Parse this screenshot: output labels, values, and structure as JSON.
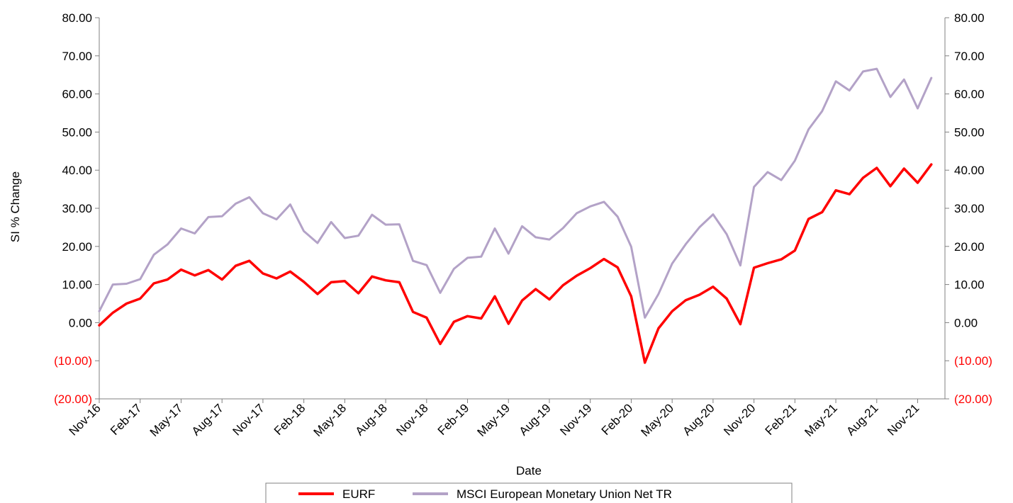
{
  "chart_data": {
    "type": "line",
    "xlabel": "Date",
    "ylabel": "SI % Change",
    "ylim": [
      -20,
      80
    ],
    "yticks": [
      -20,
      -10,
      0,
      10,
      20,
      30,
      40,
      50,
      60,
      70,
      80
    ],
    "ytick_labels": [
      "(20.00)",
      "(10.00)",
      "0.00",
      "10.00",
      "20.00",
      "30.00",
      "40.00",
      "50.00",
      "60.00",
      "70.00",
      "80.00"
    ],
    "negative_tick_color": "#ff0000",
    "secondary_axis_right": true,
    "x_tick_labels": [
      "Nov-16",
      "Feb-17",
      "May-17",
      "Aug-17",
      "Nov-17",
      "Feb-18",
      "May-18",
      "Aug-18",
      "Nov-18",
      "Feb-19",
      "May-19",
      "Aug-19",
      "Nov-19",
      "Feb-20",
      "May-20",
      "Aug-20",
      "Nov-20",
      "Feb-21",
      "May-21",
      "Aug-21",
      "Nov-21"
    ],
    "x": [
      "Nov-16",
      "Dec-16",
      "Jan-17",
      "Feb-17",
      "Mar-17",
      "Apr-17",
      "May-17",
      "Jun-17",
      "Jul-17",
      "Aug-17",
      "Sep-17",
      "Oct-17",
      "Nov-17",
      "Dec-17",
      "Jan-18",
      "Feb-18",
      "Mar-18",
      "Apr-18",
      "May-18",
      "Jun-18",
      "Jul-18",
      "Aug-18",
      "Sep-18",
      "Oct-18",
      "Nov-18",
      "Dec-18",
      "Jan-19",
      "Feb-19",
      "Mar-19",
      "Apr-19",
      "May-19",
      "Jun-19",
      "Jul-19",
      "Aug-19",
      "Sep-19",
      "Oct-19",
      "Nov-19",
      "Dec-19",
      "Jan-20",
      "Feb-20",
      "Mar-20",
      "Apr-20",
      "May-20",
      "Jun-20",
      "Jul-20",
      "Aug-20",
      "Sep-20",
      "Oct-20",
      "Nov-20",
      "Dec-20",
      "Jan-21",
      "Feb-21",
      "Mar-21",
      "Apr-21",
      "May-21",
      "Jun-21",
      "Jul-21",
      "Aug-21",
      "Sep-21",
      "Oct-21",
      "Nov-21",
      "Dec-21"
    ],
    "series": [
      {
        "name": "EURF",
        "color": "#ff0000",
        "values": [
          -0.7,
          2.6,
          5.0,
          6.3,
          10.3,
          11.3,
          13.9,
          12.4,
          13.8,
          11.3,
          14.9,
          16.2,
          12.9,
          11.6,
          13.4,
          10.7,
          7.5,
          10.6,
          10.9,
          7.7,
          12.1,
          11.1,
          10.6,
          2.8,
          1.3,
          -5.6,
          0.2,
          1.7,
          1.1,
          6.9,
          -0.3,
          5.8,
          8.8,
          6.1,
          9.8,
          12.3,
          14.3,
          16.7,
          14.5,
          6.9,
          -10.5,
          -1.5,
          3.0,
          5.9,
          7.3,
          9.4,
          6.3,
          -0.4,
          14.4,
          15.6,
          16.6,
          18.9,
          27.2,
          29.0,
          34.7,
          33.7,
          38.0,
          40.6,
          35.8,
          40.4,
          36.7,
          41.5
        ]
      },
      {
        "name": "MSCI European Monetary Union Net TR",
        "color": "#b3a2c7",
        "values": [
          3.0,
          10.0,
          10.2,
          11.4,
          17.8,
          20.5,
          24.7,
          23.4,
          27.7,
          27.9,
          31.2,
          32.9,
          28.7,
          27.1,
          31.0,
          24.0,
          20.9,
          26.4,
          22.2,
          22.8,
          28.3,
          25.7,
          25.8,
          16.2,
          15.1,
          7.8,
          14.1,
          17.0,
          17.3,
          24.7,
          18.1,
          25.3,
          22.4,
          21.8,
          24.8,
          28.7,
          30.5,
          31.7,
          27.8,
          19.9,
          1.3,
          7.5,
          15.5,
          20.6,
          25.0,
          28.4,
          23.2,
          15.0,
          35.6,
          39.5,
          37.4,
          42.5,
          50.7,
          55.5,
          63.3,
          60.9,
          65.9,
          66.6,
          59.2,
          63.8,
          56.2,
          64.2
        ]
      }
    ],
    "legend_position": "bottom"
  }
}
